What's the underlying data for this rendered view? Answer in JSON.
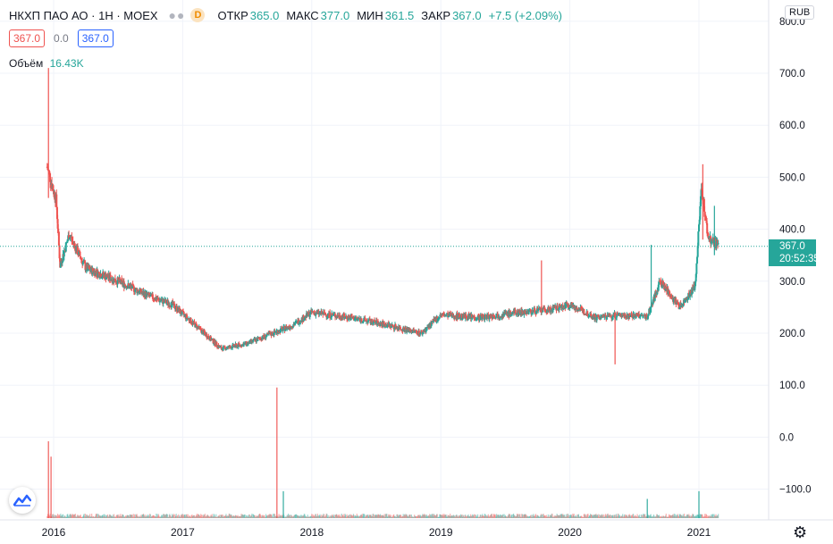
{
  "legend": {
    "symbol": "НКХП ПАО АО · 1Н · MOEX",
    "d_badge": "D",
    "open_label": "ОТКР",
    "open": "365.0",
    "high_label": "МАКС",
    "high": "377.0",
    "low_label": "МИН",
    "low": "361.5",
    "close_label": "ЗАКР",
    "close": "367.0",
    "change": "+7.5 (+2.09%)"
  },
  "inputs": {
    "price_box": "367.0",
    "spread": "0.0",
    "price_box2": "367.0"
  },
  "volume": {
    "label": "Объём",
    "value": "16.43K"
  },
  "currency": "RUB",
  "last_price": {
    "price": "367.0",
    "countdown": "20:52:35"
  },
  "colors": {
    "up": "#26a69a",
    "down": "#ef5350"
  },
  "chart_data": {
    "type": "candlestick",
    "y_ticks": [
      "800.0",
      "700.0",
      "600.0",
      "500.0",
      "400.0",
      "300.0",
      "200.0",
      "100.0",
      "0.0",
      "−100.0"
    ],
    "x_ticks": [
      "2016",
      "2017",
      "2018",
      "2019",
      "2020",
      "2021"
    ],
    "ylim": [
      -150,
      810
    ],
    "price_path": [
      {
        "year": 2015.95,
        "price": 520
      },
      {
        "year": 2016.02,
        "price": 455
      },
      {
        "year": 2016.05,
        "price": 330
      },
      {
        "year": 2016.12,
        "price": 390
      },
      {
        "year": 2016.25,
        "price": 325
      },
      {
        "year": 2016.5,
        "price": 300
      },
      {
        "year": 2016.75,
        "price": 270
      },
      {
        "year": 2016.92,
        "price": 255
      },
      {
        "year": 2017.1,
        "price": 215
      },
      {
        "year": 2017.3,
        "price": 170
      },
      {
        "year": 2017.5,
        "price": 180
      },
      {
        "year": 2017.7,
        "price": 200
      },
      {
        "year": 2017.85,
        "price": 215
      },
      {
        "year": 2018.0,
        "price": 240
      },
      {
        "year": 2018.3,
        "price": 230
      },
      {
        "year": 2018.6,
        "price": 215
      },
      {
        "year": 2018.85,
        "price": 200
      },
      {
        "year": 2019.0,
        "price": 235
      },
      {
        "year": 2019.3,
        "price": 230
      },
      {
        "year": 2019.6,
        "price": 240
      },
      {
        "year": 2019.85,
        "price": 245
      },
      {
        "year": 2020.0,
        "price": 255
      },
      {
        "year": 2020.2,
        "price": 230
      },
      {
        "year": 2020.4,
        "price": 235
      },
      {
        "year": 2020.6,
        "price": 232
      },
      {
        "year": 2020.7,
        "price": 300
      },
      {
        "year": 2020.85,
        "price": 250
      },
      {
        "year": 2020.97,
        "price": 290
      },
      {
        "year": 2021.02,
        "price": 480
      },
      {
        "year": 2021.07,
        "price": 385
      },
      {
        "year": 2021.15,
        "price": 367
      }
    ],
    "wicks": [
      {
        "year": 2015.96,
        "low": 460,
        "high": 710
      },
      {
        "year": 2019.78,
        "low": 240,
        "high": 340
      },
      {
        "year": 2020.35,
        "low": 140,
        "high": 230
      },
      {
        "year": 2020.63,
        "low": 240,
        "high": 370
      },
      {
        "year": 2021.03,
        "low": 380,
        "high": 525
      },
      {
        "year": 2021.12,
        "low": 350,
        "high": 445
      }
    ],
    "volume_spikes": [
      {
        "year": 2015.96,
        "volume": 1.0
      },
      {
        "year": 2015.98,
        "volume": 0.8
      },
      {
        "year": 2017.73,
        "volume": 1.7
      },
      {
        "year": 2017.78,
        "volume": 0.35
      },
      {
        "year": 2020.6,
        "volume": 0.25
      },
      {
        "year": 2021.0,
        "volume": 0.35
      }
    ]
  }
}
